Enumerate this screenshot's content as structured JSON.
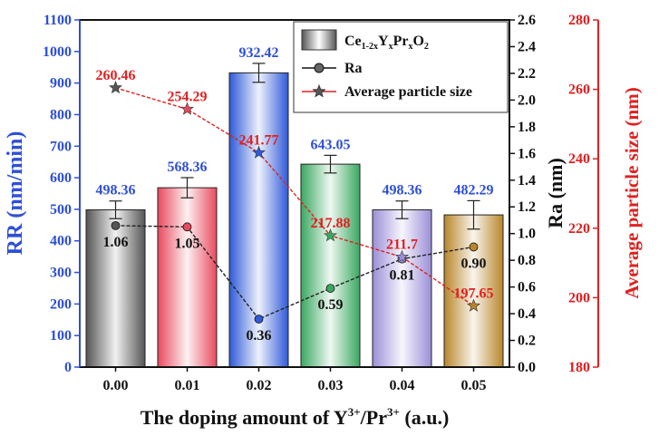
{
  "chart_data": {
    "type": "bar",
    "xlabel_prefix": "The doping amount of Y",
    "xlabel_sup1": "3+",
    "xlabel_mid": "/Pr",
    "xlabel_sup2": "3+",
    "xlabel_suffix": " (a.u.)",
    "categories": [
      "0.00",
      "0.01",
      "0.02",
      "0.03",
      "0.04",
      "0.05"
    ],
    "rr_axis": {
      "label": "RR (nm/min)",
      "ylim": [
        0,
        1100
      ],
      "ticks": [
        "0",
        "100",
        "200",
        "300",
        "400",
        "500",
        "600",
        "700",
        "800",
        "900",
        "1000",
        "1100"
      ],
      "color": "#2e4fd6"
    },
    "ra_axis": {
      "label": "Ra (nm)",
      "ylim": [
        0,
        2.6
      ],
      "ticks": [
        "0.0",
        "0.2",
        "0.4",
        "0.6",
        "0.8",
        "1.0",
        "1.2",
        "1.4",
        "1.6",
        "1.8",
        "2.0",
        "2.2",
        "2.4",
        "2.6"
      ],
      "color": "#111111"
    },
    "size_axis": {
      "label": "Average particle size (nm)",
      "ylim": [
        180,
        280
      ],
      "ticks": [
        "180",
        "200",
        "220",
        "240",
        "260",
        "280"
      ],
      "color": "#e02020"
    },
    "legend_position": "top-right",
    "legend": [
      {
        "kind": "bar",
        "label_main": "Ce",
        "label_sub1": "1-2x",
        "label_mid1": "Y",
        "label_sub2": "x",
        "label_mid2": "Pr",
        "label_sub3": "x",
        "label_mid3": "O",
        "label_sub4": "2"
      },
      {
        "kind": "line-circle",
        "label": "Ra"
      },
      {
        "kind": "line-star",
        "label": "Average particle size"
      }
    ],
    "series": [
      {
        "kind": "bar",
        "axis": "rr",
        "values": [
          498.36,
          568.36,
          932.42,
          643.05,
          498.36,
          482.29
        ],
        "errors": [
          28,
          32,
          30,
          28,
          28,
          45
        ],
        "labels": [
          "498.36",
          "568.36",
          "932.42",
          "643.05",
          "498.36",
          "482.29"
        ],
        "colors": [
          "#555555",
          "#e84a5f",
          "#2f5ad8",
          "#3aa860",
          "#9b8fd8",
          "#b8862a"
        ]
      },
      {
        "kind": "line",
        "axis": "ra",
        "name": "Ra",
        "values": [
          1.06,
          1.05,
          0.36,
          0.59,
          0.81,
          0.9
        ],
        "labels": [
          "1.06",
          "1.05",
          "0.36",
          "0.59",
          "0.81",
          "0.90"
        ],
        "color": "#222222"
      },
      {
        "kind": "line",
        "axis": "size",
        "name": "Average particle size",
        "values": [
          260.46,
          254.29,
          241.77,
          217.88,
          211.7,
          197.65
        ],
        "labels": [
          "260.46",
          "254.29",
          "241.77",
          "217.88",
          "211.7",
          "197.65"
        ],
        "color": "#e02020"
      }
    ]
  }
}
